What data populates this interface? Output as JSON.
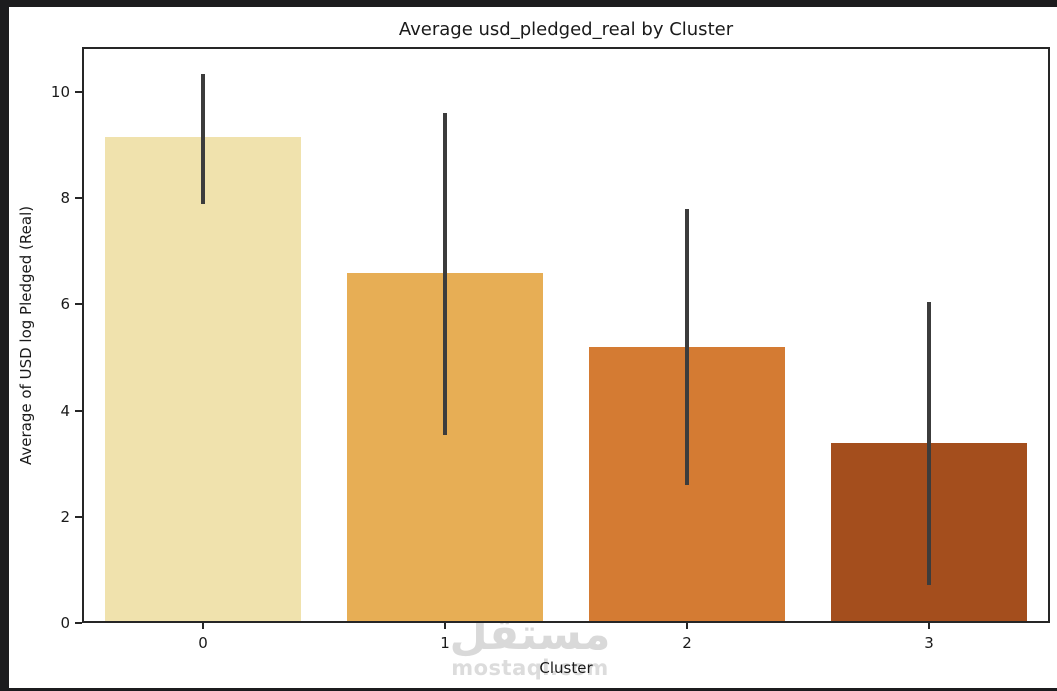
{
  "window": {
    "outer_background": "#1c1c1e",
    "figure_background": "#ffffff"
  },
  "chart_data": {
    "type": "bar",
    "title": "Average usd_pledged_real by Cluster",
    "xlabel": "Cluster",
    "ylabel": "Average of USD log Pledged (Real)",
    "categories": [
      "0",
      "1",
      "2",
      "3"
    ],
    "values": [
      9.15,
      6.6,
      5.2,
      3.4
    ],
    "error_bars": {
      "low": [
        7.9,
        3.55,
        2.6,
        0.72
      ],
      "high": [
        10.35,
        9.6,
        7.8,
        6.05
      ]
    },
    "bar_colors": [
      "#f0e2ad",
      "#e7ae55",
      "#d47b33",
      "#a44e1d"
    ],
    "errorbar_color": "#3c3c3c",
    "ytick_labels": [
      "0",
      "2",
      "4",
      "6",
      "8",
      "10"
    ],
    "ytick_values": [
      0,
      2,
      4,
      6,
      8,
      10
    ],
    "ylim": [
      0,
      10.85
    ],
    "xlim_note": "4 category slots, bar width 0.81 of slot",
    "grid": false,
    "legend_position": "none",
    "spine_color": "#262626",
    "text_color": "#1a1a1a"
  },
  "watermark": {
    "arabic_text": "مستقل",
    "latin_text": "mostaql.com",
    "color": "#d9d9d9"
  }
}
